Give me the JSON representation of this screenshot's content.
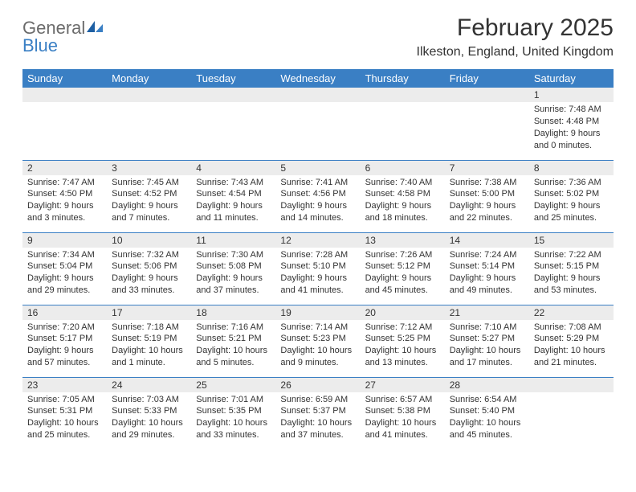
{
  "logo": {
    "text1": "General",
    "text2": "Blue"
  },
  "title": {
    "month": "February 2025",
    "location": "Ilkeston, England, United Kingdom"
  },
  "colors": {
    "header_bg": "#3a7fc4",
    "header_text": "#ffffff",
    "daynum_bg": "#ececec",
    "border": "#3a7fc4",
    "logo_gray": "#6b6b6b",
    "logo_blue": "#3a7fc4",
    "text": "#333333"
  },
  "weekdays": [
    "Sunday",
    "Monday",
    "Tuesday",
    "Wednesday",
    "Thursday",
    "Friday",
    "Saturday"
  ],
  "weeks": [
    [
      null,
      null,
      null,
      null,
      null,
      null,
      {
        "n": "1",
        "sunrise": "Sunrise: 7:48 AM",
        "sunset": "Sunset: 4:48 PM",
        "daylight": "Daylight: 9 hours and 0 minutes."
      }
    ],
    [
      {
        "n": "2",
        "sunrise": "Sunrise: 7:47 AM",
        "sunset": "Sunset: 4:50 PM",
        "daylight": "Daylight: 9 hours and 3 minutes."
      },
      {
        "n": "3",
        "sunrise": "Sunrise: 7:45 AM",
        "sunset": "Sunset: 4:52 PM",
        "daylight": "Daylight: 9 hours and 7 minutes."
      },
      {
        "n": "4",
        "sunrise": "Sunrise: 7:43 AM",
        "sunset": "Sunset: 4:54 PM",
        "daylight": "Daylight: 9 hours and 11 minutes."
      },
      {
        "n": "5",
        "sunrise": "Sunrise: 7:41 AM",
        "sunset": "Sunset: 4:56 PM",
        "daylight": "Daylight: 9 hours and 14 minutes."
      },
      {
        "n": "6",
        "sunrise": "Sunrise: 7:40 AM",
        "sunset": "Sunset: 4:58 PM",
        "daylight": "Daylight: 9 hours and 18 minutes."
      },
      {
        "n": "7",
        "sunrise": "Sunrise: 7:38 AM",
        "sunset": "Sunset: 5:00 PM",
        "daylight": "Daylight: 9 hours and 22 minutes."
      },
      {
        "n": "8",
        "sunrise": "Sunrise: 7:36 AM",
        "sunset": "Sunset: 5:02 PM",
        "daylight": "Daylight: 9 hours and 25 minutes."
      }
    ],
    [
      {
        "n": "9",
        "sunrise": "Sunrise: 7:34 AM",
        "sunset": "Sunset: 5:04 PM",
        "daylight": "Daylight: 9 hours and 29 minutes."
      },
      {
        "n": "10",
        "sunrise": "Sunrise: 7:32 AM",
        "sunset": "Sunset: 5:06 PM",
        "daylight": "Daylight: 9 hours and 33 minutes."
      },
      {
        "n": "11",
        "sunrise": "Sunrise: 7:30 AM",
        "sunset": "Sunset: 5:08 PM",
        "daylight": "Daylight: 9 hours and 37 minutes."
      },
      {
        "n": "12",
        "sunrise": "Sunrise: 7:28 AM",
        "sunset": "Sunset: 5:10 PM",
        "daylight": "Daylight: 9 hours and 41 minutes."
      },
      {
        "n": "13",
        "sunrise": "Sunrise: 7:26 AM",
        "sunset": "Sunset: 5:12 PM",
        "daylight": "Daylight: 9 hours and 45 minutes."
      },
      {
        "n": "14",
        "sunrise": "Sunrise: 7:24 AM",
        "sunset": "Sunset: 5:14 PM",
        "daylight": "Daylight: 9 hours and 49 minutes."
      },
      {
        "n": "15",
        "sunrise": "Sunrise: 7:22 AM",
        "sunset": "Sunset: 5:15 PM",
        "daylight": "Daylight: 9 hours and 53 minutes."
      }
    ],
    [
      {
        "n": "16",
        "sunrise": "Sunrise: 7:20 AM",
        "sunset": "Sunset: 5:17 PM",
        "daylight": "Daylight: 9 hours and 57 minutes."
      },
      {
        "n": "17",
        "sunrise": "Sunrise: 7:18 AM",
        "sunset": "Sunset: 5:19 PM",
        "daylight": "Daylight: 10 hours and 1 minute."
      },
      {
        "n": "18",
        "sunrise": "Sunrise: 7:16 AM",
        "sunset": "Sunset: 5:21 PM",
        "daylight": "Daylight: 10 hours and 5 minutes."
      },
      {
        "n": "19",
        "sunrise": "Sunrise: 7:14 AM",
        "sunset": "Sunset: 5:23 PM",
        "daylight": "Daylight: 10 hours and 9 minutes."
      },
      {
        "n": "20",
        "sunrise": "Sunrise: 7:12 AM",
        "sunset": "Sunset: 5:25 PM",
        "daylight": "Daylight: 10 hours and 13 minutes."
      },
      {
        "n": "21",
        "sunrise": "Sunrise: 7:10 AM",
        "sunset": "Sunset: 5:27 PM",
        "daylight": "Daylight: 10 hours and 17 minutes."
      },
      {
        "n": "22",
        "sunrise": "Sunrise: 7:08 AM",
        "sunset": "Sunset: 5:29 PM",
        "daylight": "Daylight: 10 hours and 21 minutes."
      }
    ],
    [
      {
        "n": "23",
        "sunrise": "Sunrise: 7:05 AM",
        "sunset": "Sunset: 5:31 PM",
        "daylight": "Daylight: 10 hours and 25 minutes."
      },
      {
        "n": "24",
        "sunrise": "Sunrise: 7:03 AM",
        "sunset": "Sunset: 5:33 PM",
        "daylight": "Daylight: 10 hours and 29 minutes."
      },
      {
        "n": "25",
        "sunrise": "Sunrise: 7:01 AM",
        "sunset": "Sunset: 5:35 PM",
        "daylight": "Daylight: 10 hours and 33 minutes."
      },
      {
        "n": "26",
        "sunrise": "Sunrise: 6:59 AM",
        "sunset": "Sunset: 5:37 PM",
        "daylight": "Daylight: 10 hours and 37 minutes."
      },
      {
        "n": "27",
        "sunrise": "Sunrise: 6:57 AM",
        "sunset": "Sunset: 5:38 PM",
        "daylight": "Daylight: 10 hours and 41 minutes."
      },
      {
        "n": "28",
        "sunrise": "Sunrise: 6:54 AM",
        "sunset": "Sunset: 5:40 PM",
        "daylight": "Daylight: 10 hours and 45 minutes."
      },
      null
    ]
  ]
}
